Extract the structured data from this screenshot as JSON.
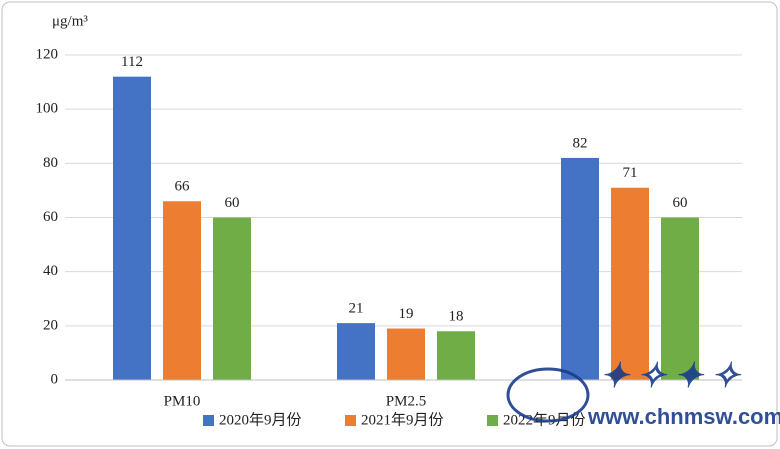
{
  "chart_data": {
    "type": "bar",
    "y_label": "μg/m³",
    "categories": [
      "PM10",
      "PM2.5",
      null
    ],
    "series": [
      {
        "name": "2020年9月份",
        "color": "#4472c4",
        "values": [
          112,
          21,
          82
        ]
      },
      {
        "name": "2021年9月份",
        "color": "#ed7d31",
        "values": [
          66,
          19,
          71
        ]
      },
      {
        "name": "2022年9月份",
        "color": "#70ad47",
        "values": [
          60,
          18,
          60
        ]
      }
    ],
    "ylim": [
      0,
      120
    ],
    "yticks": [
      0,
      20,
      40,
      60,
      80,
      100,
      120
    ],
    "grid": true,
    "legend": "bottom"
  },
  "watermark": {
    "url": "www.chnmsw.com"
  }
}
